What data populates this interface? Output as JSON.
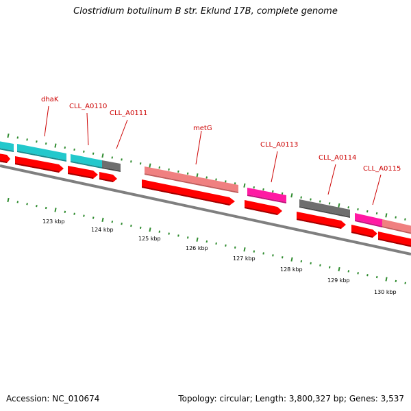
{
  "title": "Clostridium botulinum B str. Eklund 17B, complete genome",
  "accession": "Accession: NC_010674",
  "summary": "Topology: circular; Length: 3,800,327 bp; Genes: 3,537",
  "colors": {
    "cds_red": "#ff0000",
    "cyan": "#22c8cc",
    "gray": "#6e6e6e",
    "salmon": "#f08080",
    "magenta": "#ff1aa3",
    "backbone": "#7f7f7f",
    "tick_green": "#2e8b2e",
    "label_red": "#cc0000"
  },
  "gene_labels": [
    {
      "id": "dhak",
      "text": "dhaK"
    },
    {
      "id": "a0110",
      "text": "CLL_A0110"
    },
    {
      "id": "a0111",
      "text": "CLL_A0111"
    },
    {
      "id": "metg",
      "text": "metG"
    },
    {
      "id": "a0113",
      "text": "CLL_A0113"
    },
    {
      "id": "a0114",
      "text": "CLL_A0114"
    },
    {
      "id": "a0115",
      "text": "CLL_A0115"
    }
  ],
  "kbp_ticks": [
    "123 kbp",
    "124 kbp",
    "125 kbp",
    "126 kbp",
    "127 kbp",
    "128 kbp",
    "129 kbp",
    "130 kbp"
  ]
}
